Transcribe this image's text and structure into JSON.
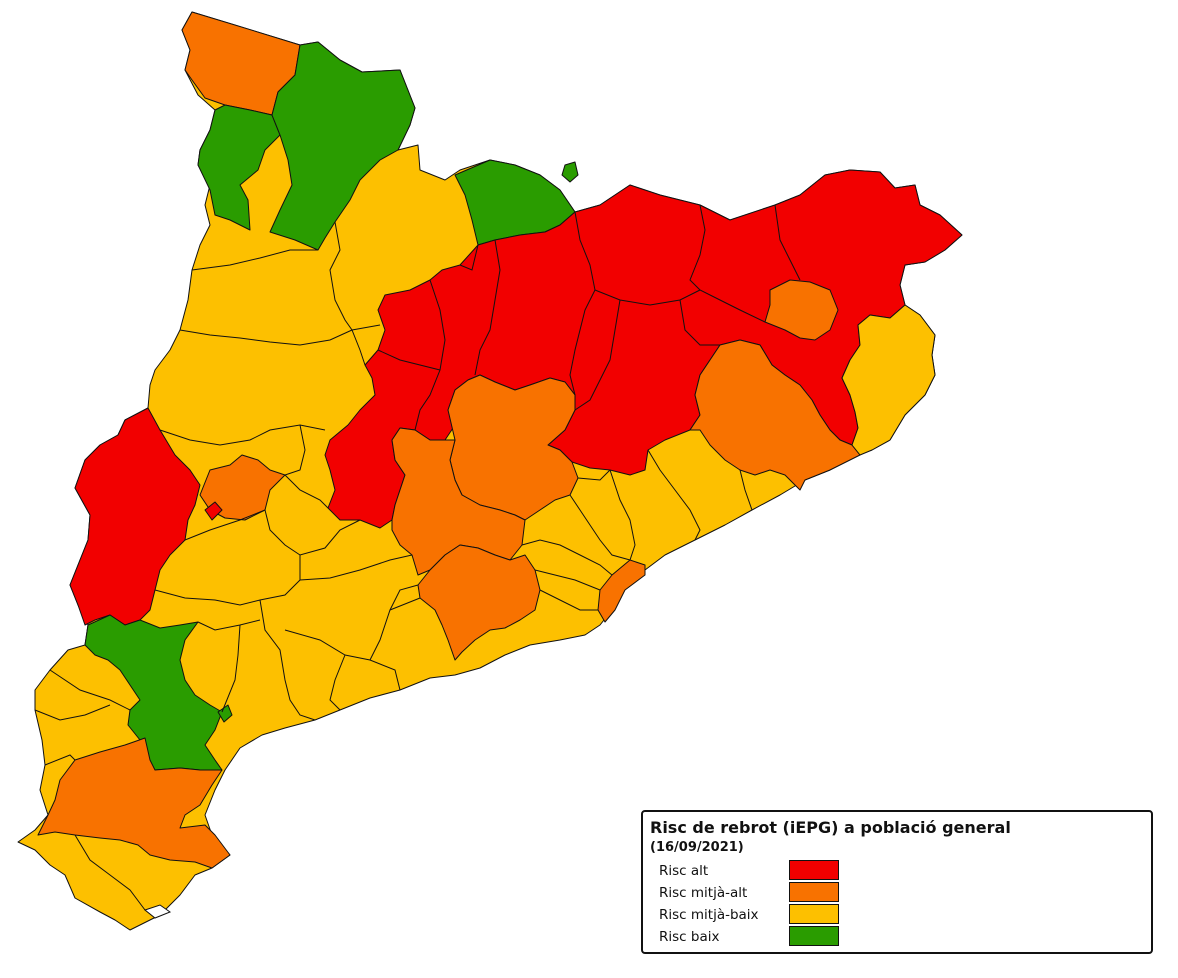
{
  "legend": {
    "title": "Risc de rebrot (iEPG) a població general",
    "subtitle": "(16/09/2021)",
    "items": [
      {
        "label": "Risc alt",
        "color": "#f20000"
      },
      {
        "label": "Risc mitjà-alt",
        "color": "#f87200"
      },
      {
        "label": "Risc mitjà-baix",
        "color": "#fdc000"
      },
      {
        "label": "Risc baix",
        "color": "#2a9c00"
      }
    ]
  },
  "colors": {
    "alt": "#f20000",
    "mitja_alt": "#f87200",
    "mitja_baix": "#fdc000",
    "baix": "#2a9c00"
  }
}
